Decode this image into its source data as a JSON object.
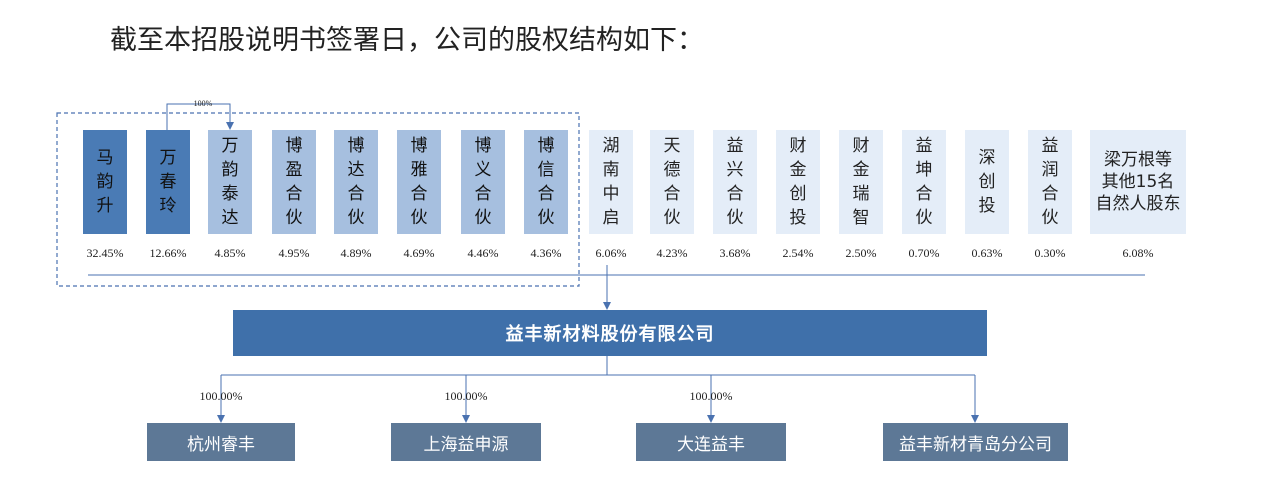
{
  "intro_text": "截至本招股说明书签署日，公司的股权结构如下：",
  "shareholders": [
    {
      "name": "马韵升",
      "pct": "32.45%",
      "shade": "dark"
    },
    {
      "name": "万春玲",
      "pct": "12.66%",
      "shade": "dark"
    },
    {
      "name": "万韵泰达",
      "pct": "4.85%",
      "shade": "mid"
    },
    {
      "name": "博盈合伙",
      "pct": "4.95%",
      "shade": "mid"
    },
    {
      "name": "博达合伙",
      "pct": "4.89%",
      "shade": "mid"
    },
    {
      "name": "博雅合伙",
      "pct": "4.69%",
      "shade": "mid"
    },
    {
      "name": "博义合伙",
      "pct": "4.46%",
      "shade": "mid"
    },
    {
      "name": "博信合伙",
      "pct": "4.36%",
      "shade": "mid"
    },
    {
      "name": "湖南中启",
      "pct": "6.06%",
      "shade": "light"
    },
    {
      "name": "天德合伙",
      "pct": "4.23%",
      "shade": "light"
    },
    {
      "name": "益兴合伙",
      "pct": "3.68%",
      "shade": "light"
    },
    {
      "name": "财金创投",
      "pct": "2.54%",
      "shade": "light"
    },
    {
      "name": "财金瑞智",
      "pct": "2.50%",
      "shade": "light"
    },
    {
      "name": "益坤合伙",
      "pct": "0.70%",
      "shade": "light"
    },
    {
      "name": "深创投",
      "pct": "0.63%",
      "shade": "light"
    },
    {
      "name": "益润合伙",
      "pct": "0.30%",
      "shade": "light"
    },
    {
      "name": "梁万根等其他15名自然人股东",
      "pct": "6.08%",
      "shade": "light"
    }
  ],
  "wan_to_tai_pct": "100%",
  "company": "益丰新材料股份有限公司",
  "subsidiaries": [
    {
      "name": "杭州睿丰",
      "pct": "100.00%"
    },
    {
      "name": "上海益申源",
      "pct": "100.00%"
    },
    {
      "name": "大连益丰",
      "pct": "100.00%"
    },
    {
      "name": "益丰新材青岛分公司",
      "pct": ""
    }
  ],
  "colors": {
    "dark": "#4a7bb5",
    "mid": "#a6bfdf",
    "light": "#e4edf8",
    "company": "#3f70aa",
    "subsidiary": "#5d7896",
    "line": "#4a72b0"
  }
}
